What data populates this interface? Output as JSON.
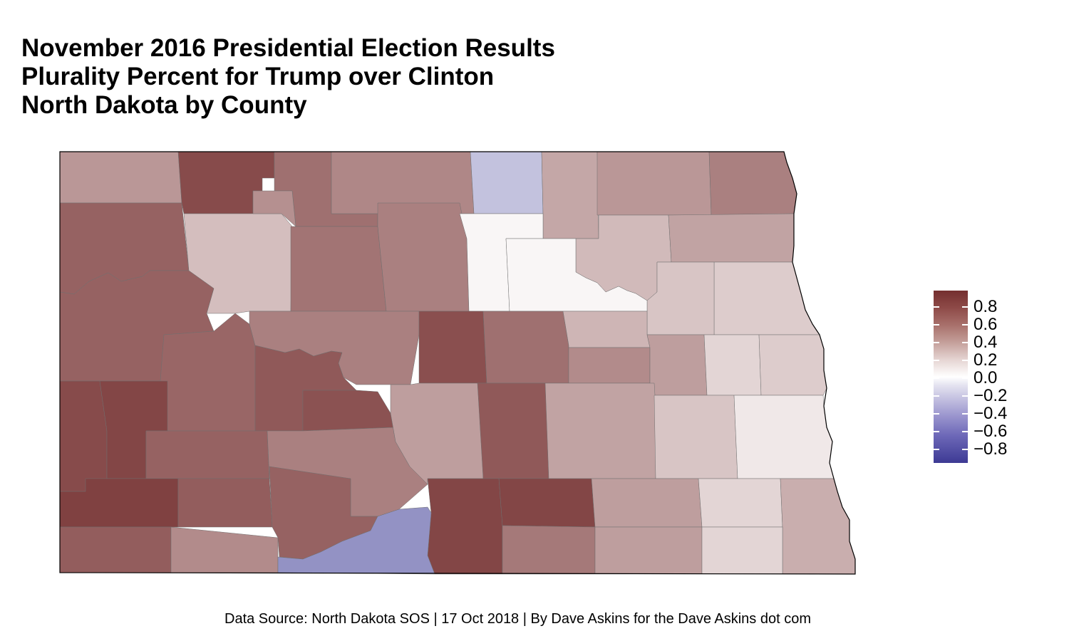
{
  "title": {
    "lines": [
      "November 2016 Presidential Election Results",
      "Plurality Percent for Trump over Clinton",
      "North Dakota by County"
    ]
  },
  "legend": {
    "labels": [
      "0.8",
      "0.6",
      "0.4",
      "0.2",
      "0.0",
      "−0.2",
      "−0.4",
      "−0.6",
      "−0.8"
    ],
    "range": [
      -0.9,
      0.9
    ],
    "high_color": "#742f2f",
    "zero_color": "#ffffff",
    "low_color": "#3d3a94"
  },
  "caption": "Data Source: North Dakota SOS | 17 Oct 2018 | By Dave Askins for the Dave Askins dot com",
  "map": {
    "region": "North Dakota",
    "counties": [
      {
        "id": "divide",
        "value": 0.45
      },
      {
        "id": "burke",
        "value": 0.78
      },
      {
        "id": "renville",
        "value": 0.62
      },
      {
        "id": "bottineau",
        "value": 0.52
      },
      {
        "id": "rolette",
        "value": -0.28
      },
      {
        "id": "towner",
        "value": 0.38
      },
      {
        "id": "cavalier",
        "value": 0.45
      },
      {
        "id": "pembina",
        "value": 0.55
      },
      {
        "id": "williams",
        "value": 0.68
      },
      {
        "id": "mountrail",
        "value": 0.28
      },
      {
        "id": "ward",
        "value": 0.48
      },
      {
        "id": "mchenry",
        "value": 0.6
      },
      {
        "id": "pierce",
        "value": 0.55
      },
      {
        "id": "benson",
        "value": 0.04
      },
      {
        "id": "ramsey",
        "value": 0.3
      },
      {
        "id": "walsh",
        "value": 0.4
      },
      {
        "id": "grand-forks",
        "value": 0.22
      },
      {
        "id": "nelson",
        "value": 0.25
      },
      {
        "id": "mckenzie",
        "value": 0.68
      },
      {
        "id": "dunn",
        "value": 0.66
      },
      {
        "id": "mclean",
        "value": 0.55
      },
      {
        "id": "mercer",
        "value": 0.72
      },
      {
        "id": "oliver",
        "value": 0.75
      },
      {
        "id": "sheridan",
        "value": 0.76
      },
      {
        "id": "wells",
        "value": 0.62
      },
      {
        "id": "foster",
        "value": 0.32
      },
      {
        "id": "eddy",
        "value": 0.5
      },
      {
        "id": "steele",
        "value": 0.18
      },
      {
        "id": "griggs",
        "value": 0.42
      },
      {
        "id": "traill",
        "value": 0.22
      },
      {
        "id": "golden-valley",
        "value": 0.78
      },
      {
        "id": "billings",
        "value": 0.8
      },
      {
        "id": "stark",
        "value": 0.68
      },
      {
        "id": "morton",
        "value": 0.55
      },
      {
        "id": "burleigh",
        "value": 0.42
      },
      {
        "id": "kidder",
        "value": 0.72
      },
      {
        "id": "stutsman",
        "value": 0.4
      },
      {
        "id": "barnes",
        "value": 0.25
      },
      {
        "id": "cass",
        "value": 0.1
      },
      {
        "id": "slope",
        "value": 0.82
      },
      {
        "id": "hettinger",
        "value": 0.7
      },
      {
        "id": "grant",
        "value": 0.68
      },
      {
        "id": "emmons",
        "value": 0.8
      },
      {
        "id": "logan",
        "value": 0.8
      },
      {
        "id": "lamoure",
        "value": 0.42
      },
      {
        "id": "ransom",
        "value": 0.18
      },
      {
        "id": "richland",
        "value": 0.35
      },
      {
        "id": "bowman",
        "value": 0.7
      },
      {
        "id": "adams",
        "value": 0.5
      },
      {
        "id": "sioux",
        "value": -0.5
      },
      {
        "id": "mcintosh",
        "value": 0.58
      },
      {
        "id": "dickey",
        "value": 0.42
      },
      {
        "id": "sargent",
        "value": 0.18
      }
    ]
  }
}
